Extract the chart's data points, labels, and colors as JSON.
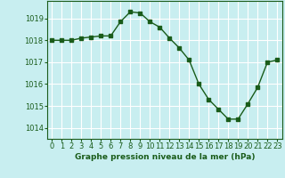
{
  "x": [
    0,
    1,
    2,
    3,
    4,
    5,
    6,
    7,
    8,
    9,
    10,
    11,
    12,
    13,
    14,
    15,
    16,
    17,
    18,
    19,
    20,
    21,
    22,
    23
  ],
  "y": [
    1018.0,
    1018.0,
    1018.0,
    1018.1,
    1018.15,
    1018.2,
    1018.2,
    1018.85,
    1019.3,
    1019.25,
    1018.85,
    1018.6,
    1018.1,
    1017.65,
    1017.1,
    1016.0,
    1015.3,
    1014.85,
    1014.4,
    1014.4,
    1015.1,
    1015.85,
    1017.0,
    1017.1
  ],
  "line_color": "#1a5c1a",
  "marker": "s",
  "markersize": 2.5,
  "linewidth": 1.0,
  "bg_color": "#c8eef0",
  "grid_color": "#ffffff",
  "xlabel": "Graphe pression niveau de la mer (hPa)",
  "xlabel_color": "#1a5c1a",
  "tick_color": "#1a5c1a",
  "ylim": [
    1013.5,
    1019.8
  ],
  "xlim": [
    -0.5,
    23.5
  ],
  "yticks": [
    1014,
    1015,
    1016,
    1017,
    1018,
    1019
  ],
  "xticks": [
    0,
    1,
    2,
    3,
    4,
    5,
    6,
    7,
    8,
    9,
    10,
    11,
    12,
    13,
    14,
    15,
    16,
    17,
    18,
    19,
    20,
    21,
    22,
    23
  ],
  "tick_fontsize": 6.0,
  "xlabel_fontsize": 6.5
}
